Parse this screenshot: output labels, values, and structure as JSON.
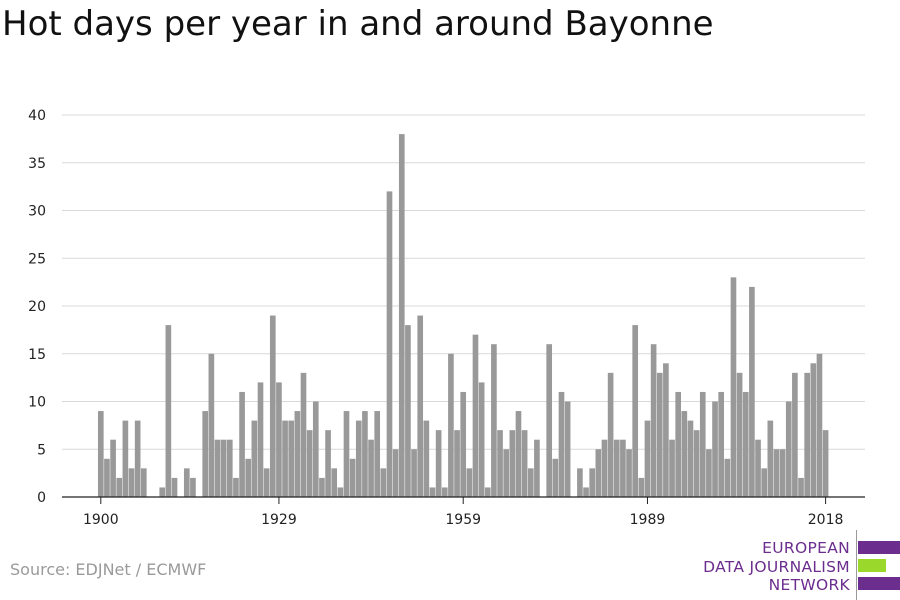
{
  "title": "Hot days per year in and around Bayonne",
  "source": "Source: EDJNet / ECMWF",
  "logo": {
    "lines": [
      "EUROPEAN",
      "DATA JOURNALISM",
      "NETWORK"
    ],
    "colors": {
      "purple": "#6b2d8e",
      "green": "#9ad92b"
    }
  },
  "chart_data": {
    "type": "bar",
    "title": "Hot days per year in and around Bayonne",
    "xlabel": "",
    "ylabel": "",
    "ylim": [
      0,
      40
    ],
    "yticks": [
      0,
      5,
      10,
      15,
      20,
      25,
      30,
      35,
      40
    ],
    "xticks": [
      1900,
      1929,
      1959,
      1989,
      2018
    ],
    "grid": true,
    "bar_color": "#999999",
    "x": [
      1900,
      1901,
      1902,
      1903,
      1904,
      1905,
      1906,
      1907,
      1908,
      1909,
      1910,
      1911,
      1912,
      1913,
      1914,
      1915,
      1916,
      1917,
      1918,
      1919,
      1920,
      1921,
      1922,
      1923,
      1924,
      1925,
      1926,
      1927,
      1928,
      1929,
      1930,
      1931,
      1932,
      1933,
      1934,
      1935,
      1936,
      1937,
      1938,
      1939,
      1940,
      1941,
      1942,
      1943,
      1944,
      1945,
      1946,
      1947,
      1948,
      1949,
      1950,
      1951,
      1952,
      1953,
      1954,
      1955,
      1956,
      1957,
      1958,
      1959,
      1960,
      1961,
      1962,
      1963,
      1964,
      1965,
      1966,
      1967,
      1968,
      1969,
      1970,
      1971,
      1972,
      1973,
      1974,
      1975,
      1976,
      1977,
      1978,
      1979,
      1980,
      1981,
      1982,
      1983,
      1984,
      1985,
      1986,
      1987,
      1988,
      1989,
      1990,
      1991,
      1992,
      1993,
      1994,
      1995,
      1996,
      1997,
      1998,
      1999,
      2000,
      2001,
      2002,
      2003,
      2004,
      2005,
      2006,
      2007,
      2008,
      2009,
      2010,
      2011,
      2012,
      2013,
      2014,
      2015,
      2016,
      2017,
      2018
    ],
    "values": [
      9,
      4,
      6,
      2,
      8,
      3,
      8,
      3,
      0,
      0,
      1,
      18,
      2,
      0,
      3,
      2,
      0,
      9,
      15,
      6,
      6,
      6,
      2,
      11,
      4,
      8,
      12,
      3,
      19,
      12,
      8,
      8,
      9,
      13,
      7,
      10,
      2,
      7,
      3,
      1,
      9,
      4,
      8,
      9,
      6,
      9,
      3,
      32,
      5,
      38,
      18,
      5,
      19,
      8,
      1,
      7,
      1,
      15,
      7,
      11,
      3,
      17,
      12,
      1,
      16,
      7,
      5,
      7,
      9,
      7,
      3,
      6,
      0,
      16,
      4,
      11,
      10,
      0,
      3,
      1,
      3,
      5,
      6,
      13,
      6,
      6,
      5,
      18,
      2,
      8,
      16,
      13,
      14,
      6,
      11,
      9,
      8,
      7,
      11,
      5,
      10,
      11,
      4,
      23,
      13,
      11,
      22,
      6,
      3,
      8,
      5,
      5,
      10,
      13,
      2,
      13,
      14,
      15,
      7
    ]
  }
}
